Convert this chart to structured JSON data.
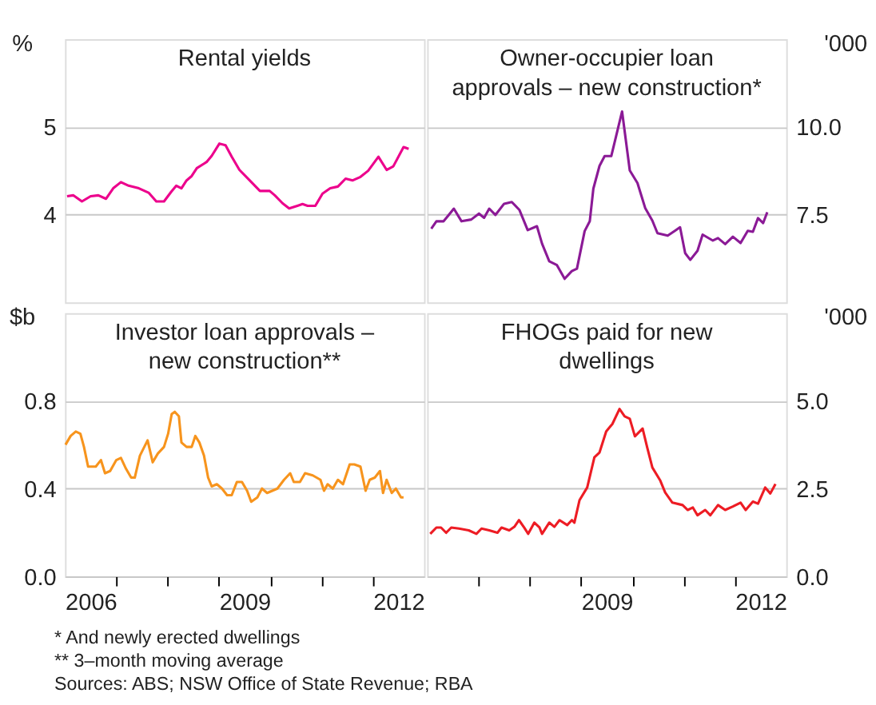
{
  "chart_data": [
    {
      "type": "line",
      "title": "Rental yields",
      "ylabel": "%",
      "xlim": [
        2006,
        2013
      ],
      "ylim": [
        3,
        6
      ],
      "yticks": [
        4,
        5
      ],
      "grid": "y",
      "tick_labels": "y",
      "series": [
        {
          "color": "#ec008c",
          "x": [
            2006.04,
            2006.16,
            2006.33,
            2006.5,
            2006.65,
            2006.8,
            2006.94,
            2007.09,
            2007.24,
            2007.44,
            2007.63,
            2007.78,
            2007.93,
            2008.07,
            2008.17,
            2008.27,
            2008.37,
            2008.47,
            2008.57,
            2008.76,
            2008.86,
            2009.01,
            2009.13,
            2009.25,
            2009.4,
            2009.6,
            2009.8,
            2009.99,
            2010.09,
            2010.24,
            2010.37,
            2010.53,
            2010.63,
            2010.73,
            2010.88,
            2011.02,
            2011.17,
            2011.32,
            2011.47,
            2011.61,
            2011.76,
            2011.91,
            2012.11,
            2012.27,
            2012.4,
            2012.6,
            2012.7
          ],
          "values": [
            4.21,
            4.22,
            4.15,
            4.21,
            4.22,
            4.18,
            4.3,
            4.37,
            4.33,
            4.3,
            4.25,
            4.15,
            4.15,
            4.26,
            4.33,
            4.3,
            4.39,
            4.44,
            4.53,
            4.6,
            4.67,
            4.81,
            4.79,
            4.66,
            4.51,
            4.39,
            4.27,
            4.27,
            4.22,
            4.13,
            4.07,
            4.1,
            4.12,
            4.1,
            4.1,
            4.24,
            4.3,
            4.32,
            4.41,
            4.39,
            4.43,
            4.5,
            4.66,
            4.51,
            4.55,
            4.77,
            4.75
          ]
        }
      ]
    },
    {
      "type": "line",
      "title": "Owner-occupier loan\napprovals – new construction*",
      "y2label": "'000",
      "xlim": [
        2006,
        2013
      ],
      "y2lim": [
        5,
        12.5
      ],
      "y2ticks": [
        7.5,
        {
          "value": 10,
          "label": "10.0"
        }
      ],
      "grid": "y",
      "tick_labels": "y",
      "series": [
        {
          "color": "#8b1a96",
          "axis": "y2",
          "x": [
            2006.08,
            2006.18,
            2006.32,
            2006.42,
            2006.52,
            2006.67,
            2006.86,
            2007.01,
            2007.11,
            2007.21,
            2007.33,
            2007.5,
            2007.65,
            2007.8,
            2007.96,
            2008.14,
            2008.24,
            2008.38,
            2008.53,
            2008.68,
            2008.82,
            2008.92,
            2009.07,
            2009.17,
            2009.24,
            2009.36,
            2009.46,
            2009.59,
            2009.8,
            2009.95,
            2010.1,
            2010.25,
            2010.39,
            2010.49,
            2010.69,
            2010.83,
            2010.93,
            2011.03,
            2011.13,
            2011.27,
            2011.37,
            2011.57,
            2011.67,
            2011.81,
            2011.96,
            2012.11,
            2012.25,
            2012.35,
            2012.45,
            2012.55,
            2012.63
          ],
          "values": [
            7.1,
            7.31,
            7.31,
            7.49,
            7.67,
            7.31,
            7.36,
            7.53,
            7.41,
            7.67,
            7.49,
            7.81,
            7.86,
            7.63,
            7.06,
            7.17,
            6.67,
            6.17,
            6.06,
            5.67,
            5.89,
            5.96,
            7.03,
            7.31,
            8.24,
            8.89,
            9.17,
            9.17,
            10.44,
            8.76,
            8.4,
            7.69,
            7.33,
            6.97,
            6.9,
            7.04,
            7.14,
            6.4,
            6.21,
            6.47,
            6.93,
            6.76,
            6.83,
            6.66,
            6.87,
            6.69,
            7.04,
            7.01,
            7.4,
            7.26,
            7.57
          ]
        }
      ]
    },
    {
      "type": "line",
      "title": "Investor loan approvals –\nnew construction**",
      "ylabel": "$b",
      "xlim": [
        2006,
        2013
      ],
      "xticks": [
        {
          "value": 2006.5,
          "label": "2006"
        },
        {
          "value": 2007,
          "label": null
        },
        {
          "value": 2008,
          "label": null
        },
        {
          "value": 2009,
          "label": null
        },
        {
          "value": 2009.5,
          "label": "2009"
        },
        {
          "value": 2010,
          "label": null
        },
        {
          "value": 2011,
          "label": null
        },
        {
          "value": 2012,
          "label": null
        },
        {
          "value": 2012.5,
          "label": "2012"
        }
      ],
      "ylim": [
        0,
        1.2
      ],
      "yticks": [
        {
          "value": 0,
          "label": "0.0"
        },
        0.4,
        0.8
      ],
      "grid": "y",
      "series": [
        {
          "color": "#f7941d",
          "x": [
            2006.01,
            2006.11,
            2006.21,
            2006.3,
            2006.37,
            2006.45,
            2006.6,
            2006.7,
            2006.78,
            2006.88,
            2007.0,
            2007.09,
            2007.19,
            2007.29,
            2007.36,
            2007.46,
            2007.61,
            2007.71,
            2007.81,
            2007.93,
            2008.01,
            2008.08,
            2008.14,
            2008.22,
            2008.27,
            2008.37,
            2008.47,
            2008.54,
            2008.62,
            2008.71,
            2008.79,
            2008.86,
            2008.96,
            2009.06,
            2009.16,
            2009.25,
            2009.35,
            2009.45,
            2009.55,
            2009.63,
            2009.75,
            2009.84,
            2009.94,
            2010.04,
            2010.14,
            2010.27,
            2010.39,
            2010.46,
            2010.58,
            2010.68,
            2010.83,
            2010.98,
            2011.05,
            2011.12,
            2011.22,
            2011.32,
            2011.42,
            2011.55,
            2011.64,
            2011.76,
            2011.86,
            2011.94,
            2012.04,
            2012.14,
            2012.2,
            2012.27,
            2012.37,
            2012.45,
            2012.55,
            2012.6
          ],
          "values": [
            0.6,
            0.64,
            0.66,
            0.65,
            0.59,
            0.5,
            0.5,
            0.53,
            0.47,
            0.48,
            0.53,
            0.54,
            0.49,
            0.45,
            0.45,
            0.55,
            0.62,
            0.52,
            0.56,
            0.59,
            0.65,
            0.74,
            0.75,
            0.73,
            0.61,
            0.59,
            0.59,
            0.64,
            0.61,
            0.55,
            0.45,
            0.41,
            0.42,
            0.4,
            0.37,
            0.37,
            0.43,
            0.43,
            0.39,
            0.34,
            0.36,
            0.4,
            0.38,
            0.39,
            0.4,
            0.44,
            0.47,
            0.43,
            0.43,
            0.47,
            0.46,
            0.44,
            0.39,
            0.42,
            0.4,
            0.44,
            0.42,
            0.51,
            0.51,
            0.5,
            0.39,
            0.44,
            0.45,
            0.48,
            0.38,
            0.44,
            0.38,
            0.4,
            0.36,
            0.36
          ]
        }
      ]
    },
    {
      "type": "line",
      "title": "FHOGs paid for new\ndwellings",
      "y2label": "'000",
      "xlim": [
        2006,
        2013
      ],
      "xticks": [
        {
          "value": 2007,
          "label": null
        },
        {
          "value": 2008,
          "label": null
        },
        {
          "value": 2009,
          "label": null
        },
        {
          "value": 2009.5,
          "label": "2009"
        },
        {
          "value": 2010,
          "label": null
        },
        {
          "value": 2011,
          "label": null
        },
        {
          "value": 2012,
          "label": null
        },
        {
          "value": 2012.5,
          "label": "2012"
        }
      ],
      "y2lim": [
        0,
        7.5
      ],
      "y2ticks": [
        {
          "value": 0,
          "label": "0.0"
        },
        2.5,
        {
          "value": 5,
          "label": "5.0"
        }
      ],
      "grid": "y",
      "annotations": [
        "*    And newly erected dwellings",
        "**   3–month moving average",
        "Sources: ABS; NSW Office of State Revenue; RBA"
      ],
      "series": [
        {
          "color": "#ed1c24",
          "axis": "y2",
          "x": [
            2006.06,
            2006.18,
            2006.27,
            2006.37,
            2006.47,
            2006.62,
            2006.81,
            2006.96,
            2007.06,
            2007.21,
            2007.37,
            2007.45,
            2007.6,
            2007.7,
            2007.79,
            2007.89,
            2007.97,
            2008.09,
            2008.19,
            2008.24,
            2008.38,
            2008.48,
            2008.58,
            2008.73,
            2008.82,
            2008.87,
            2008.97,
            2009.12,
            2009.26,
            2009.36,
            2009.49,
            2009.61,
            2009.75,
            2009.85,
            2009.95,
            2010.05,
            2010.2,
            2010.29,
            2010.39,
            2010.54,
            2010.64,
            2010.78,
            2010.98,
            2011.08,
            2011.18,
            2011.27,
            2011.42,
            2011.52,
            2011.67,
            2011.81,
            2011.96,
            2012.11,
            2012.21,
            2012.35,
            2012.45,
            2012.59,
            2012.69,
            2012.79
          ],
          "values": [
            1.21,
            1.39,
            1.39,
            1.24,
            1.39,
            1.36,
            1.31,
            1.21,
            1.36,
            1.31,
            1.24,
            1.39,
            1.31,
            1.41,
            1.6,
            1.39,
            1.21,
            1.53,
            1.39,
            1.21,
            1.53,
            1.41,
            1.6,
            1.46,
            1.6,
            1.53,
            2.17,
            2.53,
            3.39,
            3.53,
            4.13,
            4.34,
            4.77,
            4.56,
            4.49,
            3.99,
            4.21,
            3.67,
            3.1,
            2.74,
            2.39,
            2.1,
            2.03,
            1.89,
            1.96,
            1.74,
            1.89,
            1.74,
            2.03,
            1.89,
            1.99,
            2.1,
            1.89,
            2.13,
            2.07,
            2.53,
            2.36,
            2.63
          ]
        }
      ]
    }
  ]
}
